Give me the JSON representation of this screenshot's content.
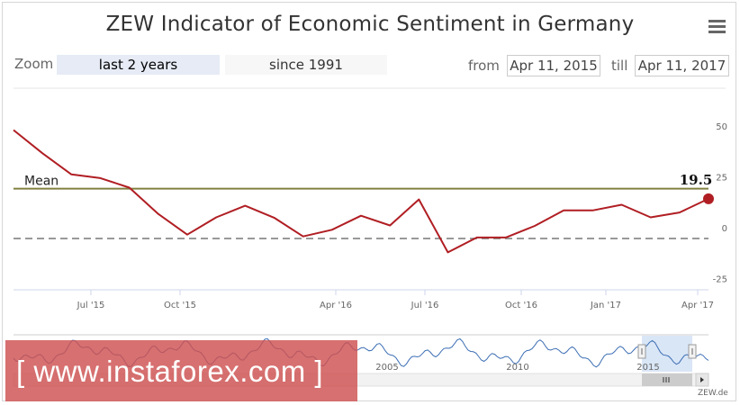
{
  "chart_title": "ZEW Indicator of Economic Sentiment in Germany",
  "toolbar": {
    "zoom_label": "Zoom",
    "zoom_buttons": [
      "last 2 years",
      "since 1991"
    ],
    "from_label": "from",
    "from_value": "Apr 11, 2015",
    "till_label": "till",
    "till_value": "Apr 11, 2017"
  },
  "credit": "ZEW.de",
  "watermark": "[ www.instaforex.com ]",
  "colors": {
    "series": "#b01e23",
    "mean": "#808040",
    "zero_line": "#999999",
    "navigator": "#3c6eb4",
    "navigator_mask": "#cfe0f4"
  },
  "chart_data": {
    "type": "line",
    "title": "ZEW Indicator of Economic Sentiment in Germany",
    "x_ticks": [
      "Jul '15",
      "Oct '15",
      "Apr '16",
      "Jul '16",
      "Oct '16",
      "Jan '17",
      "Apr '17"
    ],
    "y_ticks": [
      "50",
      "25",
      "0",
      "-25"
    ],
    "ylim": [
      -25,
      50
    ],
    "grid": false,
    "x": [
      "2015-04",
      "2015-05",
      "2015-06",
      "2015-07",
      "2015-08",
      "2015-09",
      "2015-10",
      "2015-11",
      "2015-12",
      "2016-01",
      "2016-02",
      "2016-03",
      "2016-04",
      "2016-05",
      "2016-06",
      "2016-07",
      "2016-08",
      "2016-09",
      "2016-10",
      "2016-11",
      "2016-12",
      "2017-01",
      "2017-02",
      "2017-03",
      "2017-04"
    ],
    "series": [
      {
        "values": [
          53.3,
          41.9,
          31.5,
          29.7,
          25.0,
          12.1,
          1.9,
          10.4,
          16.1,
          10.2,
          1.0,
          4.3,
          11.2,
          6.4,
          19.2,
          -6.8,
          0.5,
          0.5,
          6.2,
          13.8,
          13.8,
          16.6,
          10.4,
          12.8,
          19.5
        ]
      }
    ],
    "mean": {
      "label": "Mean",
      "value": 24.5
    },
    "last_value_label": "19.5",
    "navigator": {
      "labels": [
        "2005",
        "2010",
        "2015"
      ]
    }
  }
}
